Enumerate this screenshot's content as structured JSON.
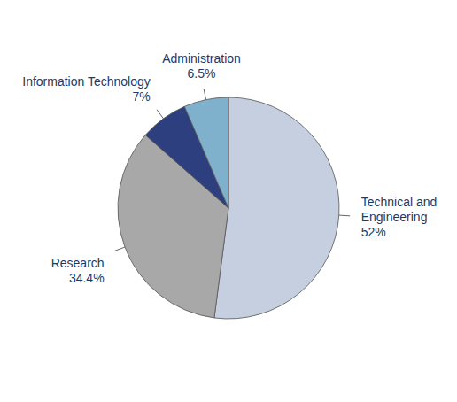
{
  "chart_data": {
    "type": "pie",
    "categories": [
      "Technical and\nEngineering",
      "Research",
      "Information Technology",
      "Administration"
    ],
    "values": [
      52,
      34.4,
      7,
      6.5
    ],
    "value_labels": [
      "52%",
      "34.4%",
      "7%",
      "6.5%"
    ],
    "colors": [
      "#c5cfe0",
      "#a8a8a8",
      "#2e3f7f",
      "#7fb0cc"
    ],
    "data_labels": true
  }
}
